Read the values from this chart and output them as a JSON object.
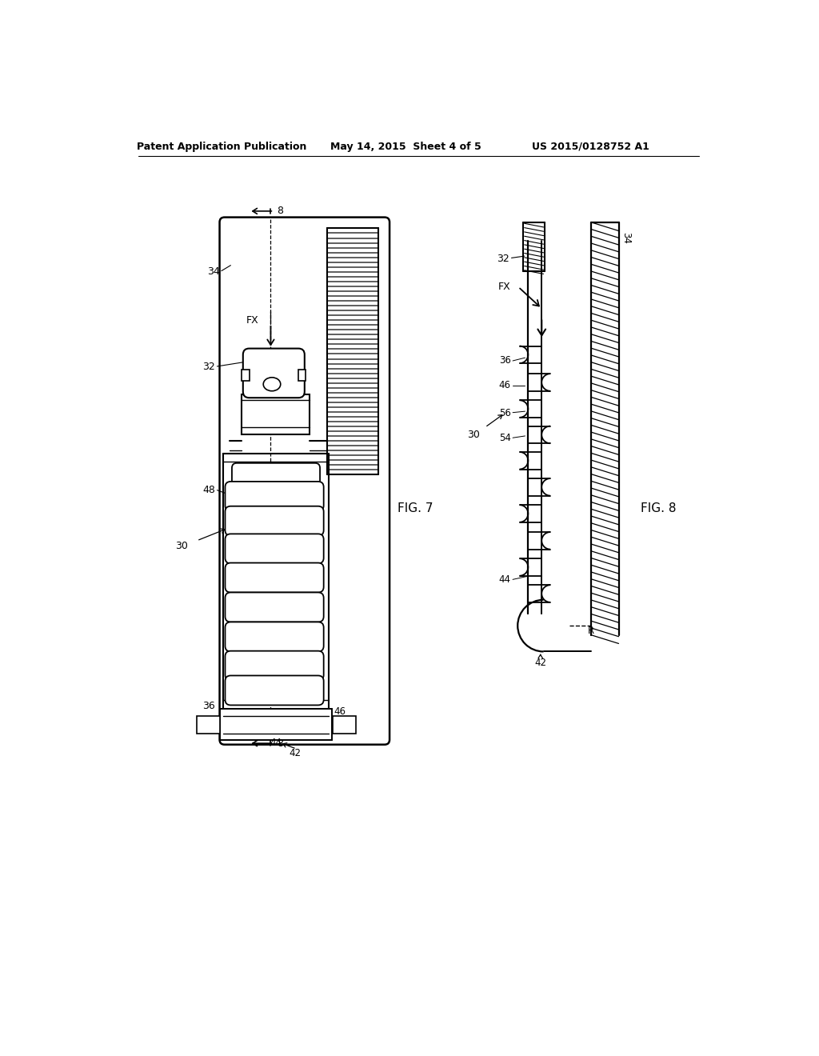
{
  "header_left": "Patent Application Publication",
  "header_center": "May 14, 2015  Sheet 4 of 5",
  "header_right": "US 2015/0128752 A1",
  "fig7_label": "FIG. 7",
  "fig8_label": "FIG. 8",
  "bg_color": "#ffffff"
}
